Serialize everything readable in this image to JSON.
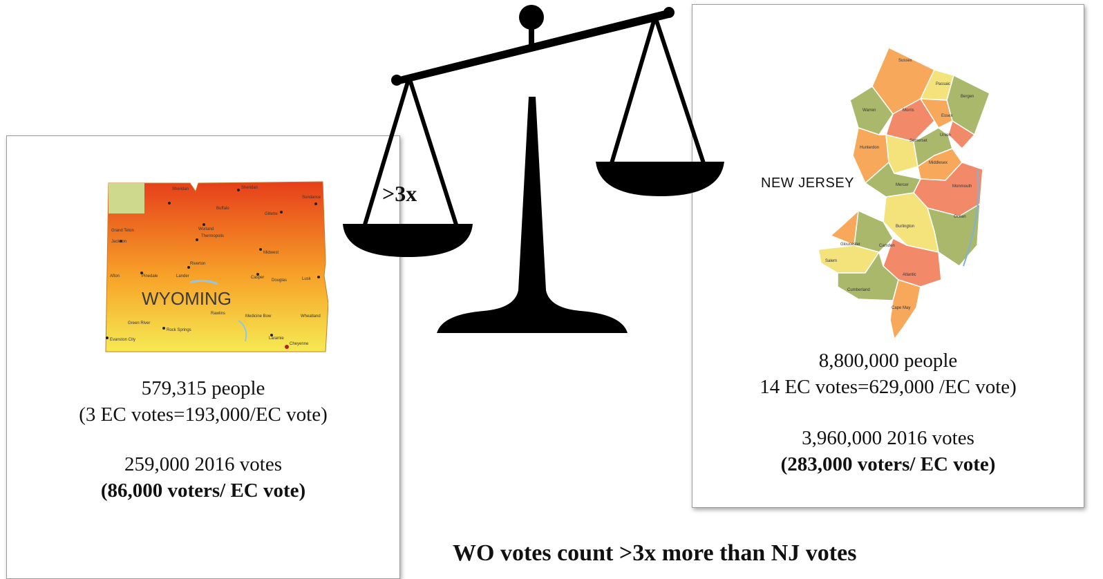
{
  "wyoming": {
    "map_label": "WYOMING",
    "population": "579,315 people",
    "ec_line": "(3 EC votes=193,000/EC vote)",
    "votes_2016": "259,000 2016 votes",
    "voters_per_ec": "(86,000 voters/ EC vote)",
    "map_colors": {
      "top": "#e8451c",
      "mid": "#f59a25",
      "bottom": "#f3e24a",
      "corner": "#cfd98e"
    }
  },
  "new_jersey": {
    "map_label": "NEW JERSEY",
    "population": "8,800,000 people",
    "ec_line": "14 EC votes=629,000 /EC vote)",
    "votes_2016": "3,960,000 2016 votes",
    "voters_per_ec": "(283,000 voters/ EC vote)",
    "county_colors": {
      "orange": "#f7a85a",
      "green": "#a9b86a",
      "yellow": "#f4e37a",
      "salmon": "#f28a6a"
    }
  },
  "scale": {
    "ratio_label": ">3x",
    "icon": "balance-scale-icon"
  },
  "claim": "WO votes count >3x more than NJ votes"
}
